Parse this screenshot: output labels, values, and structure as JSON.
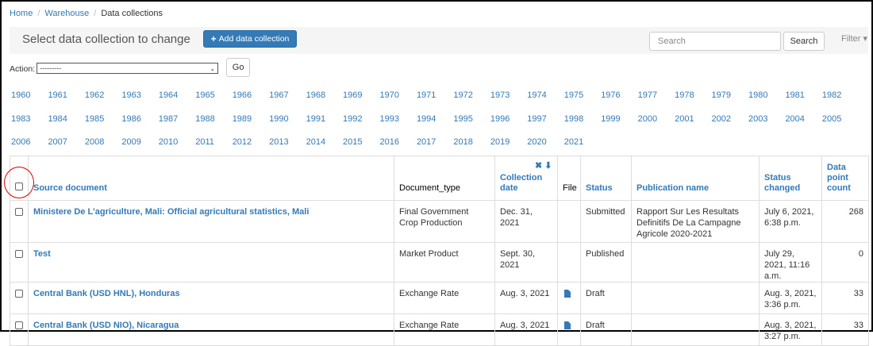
{
  "breadcrumb": {
    "home": "Home",
    "warehouse": "Warehouse",
    "current": "Data collections",
    "separator": "/"
  },
  "toolbar": {
    "title": "Select data collection to change",
    "add_label": "Add data collection",
    "search_placeholder": "Search",
    "search_button": "Search",
    "filter_label": "Filter ▾"
  },
  "action": {
    "label": "Action:",
    "selected": "---------",
    "go": "Go"
  },
  "years": [
    [
      "1960",
      "1961",
      "1962",
      "1963",
      "1964",
      "1965",
      "1966",
      "1967",
      "1968",
      "1969",
      "1970",
      "1971",
      "1972",
      "1973",
      "1974",
      "1975",
      "1976",
      "1977",
      "1978",
      "1979",
      "1980",
      "1981",
      "1982"
    ],
    [
      "1983",
      "1984",
      "1985",
      "1986",
      "1987",
      "1988",
      "1989",
      "1990",
      "1991",
      "1992",
      "1993",
      "1994",
      "1995",
      "1996",
      "1997",
      "1998",
      "1999",
      "2000",
      "2001",
      "2002",
      "2003",
      "2004",
      "2005"
    ],
    [
      "2006",
      "2007",
      "2008",
      "2009",
      "2010",
      "2011",
      "2012",
      "2013",
      "2014",
      "2015",
      "2016",
      "2017",
      "2018",
      "2019",
      "2020",
      "2021"
    ]
  ],
  "table": {
    "headers": {
      "source": "Source document",
      "doc_type": "Document_type",
      "collection_date_1": "Collection",
      "collection_date_2": "date",
      "sort_icons": "✖ ⬇",
      "file": "File",
      "status": "Status",
      "publication": "Publication name",
      "status_changed_1": "Status",
      "status_changed_2": "changed",
      "dpc_1": "Data",
      "dpc_2": "point",
      "dpc_3": "count"
    },
    "rows": [
      {
        "source": "Ministere De L'agriculture, Mali: Official agricultural statistics, Mali",
        "doc_type": "Final Government Crop Production",
        "collection_date": "Dec. 31, 2021",
        "file": "",
        "status": "Submitted",
        "publication": "Rapport Sur Les Resultats Definitifs De La Campagne Agricole 2020-2021",
        "changed": "July 6, 2021, 6:38 p.m.",
        "count": "268"
      },
      {
        "source": "Test",
        "doc_type": "Market Product",
        "collection_date": "Sept. 30, 2021",
        "file": "",
        "status": "Published",
        "publication": "",
        "changed": "July 29, 2021, 11:16 a.m.",
        "count": "0"
      },
      {
        "source": "Central Bank (USD HNL), Honduras",
        "doc_type": "Exchange Rate",
        "collection_date": "Aug. 3, 2021",
        "file": "file-icon",
        "status": "Draft",
        "publication": "",
        "changed": "Aug. 3, 2021, 3:36 p.m.",
        "count": "33"
      },
      {
        "source": "Central Bank (USD NIO), Nicaragua",
        "doc_type": "Exchange Rate",
        "collection_date": "Aug. 3, 2021",
        "file": "file-icon",
        "status": "Draft",
        "publication": "",
        "changed": "Aug. 3, 2021, 3:27 p.m.",
        "count": "33"
      }
    ]
  },
  "colors": {
    "link": "#337ab7",
    "annotation_circle": "#dd0000"
  }
}
